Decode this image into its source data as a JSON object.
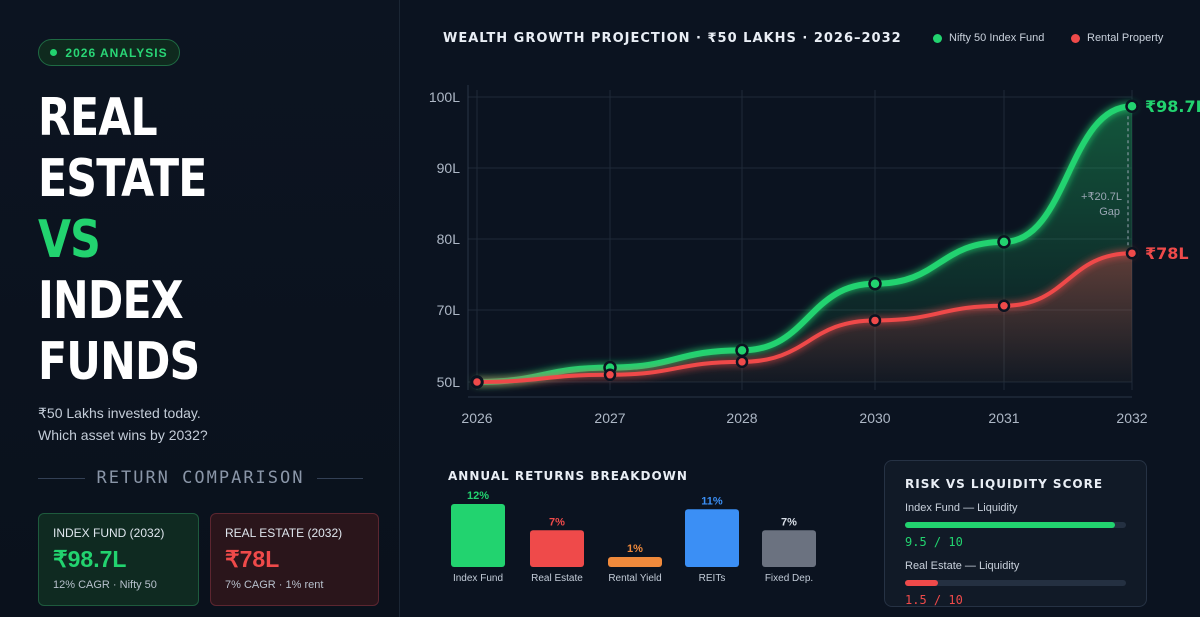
{
  "left": {
    "badge": "2026 ANALYSIS",
    "hero": [
      "REAL",
      "ESTATE",
      "VS",
      "INDEX",
      "FUNDS"
    ],
    "subtitle_1": "₹50 Lakhs invested today.",
    "subtitle_2": "Which asset wins by 2032?",
    "section_title": "RETURN COMPARISON",
    "cards": [
      {
        "label": "INDEX FUND (2032)",
        "value": "₹98.7L",
        "sub": "12% CAGR · Nifty 50"
      },
      {
        "label": "REAL ESTATE (2032)",
        "value": "₹78L",
        "sub": "7% CAGR · 1% rent"
      }
    ]
  },
  "colors": {
    "green": "#22d36f",
    "red": "#ef4a4a",
    "orange": "#f08a3c",
    "blue": "#3b8ff5",
    "gray": "#6b7280"
  },
  "chart_data": [
    {
      "type": "line",
      "title": "WEALTH GROWTH PROJECTION · ₹50 LAKHS · 2026–2032",
      "x": [
        "2026",
        "2027",
        "2028",
        "2030",
        "2031",
        "2032"
      ],
      "y_ticks": [
        "50L",
        "70L",
        "80L",
        "90L",
        "100L"
      ],
      "series": [
        {
          "name": "Nifty 50 Index Fund",
          "values": [
            50,
            54,
            58.8,
            73.7,
            79.6,
            98.7
          ],
          "end_label": "₹98.7L",
          "color": "#22d36f"
        },
        {
          "name": "Rental Property",
          "values": [
            50,
            52,
            55.6,
            67.1,
            70.6,
            78
          ],
          "end_label": "₹78L",
          "color": "#ef4a4a"
        }
      ],
      "annotation": {
        "line1": "+₹20.7L",
        "line2": "Gap"
      },
      "legend": "top-right",
      "grid": true
    },
    {
      "type": "bar",
      "title": "ANNUAL RETURNS BREAKDOWN",
      "categories": [
        "Index Fund",
        "Real Estate",
        "Rental Yield",
        "REITs",
        "Fixed Dep."
      ],
      "values": [
        12,
        7,
        1,
        11,
        7
      ],
      "labels": [
        "12%",
        "7%",
        "1%",
        "11%",
        "7%"
      ],
      "colors": [
        "#22d36f",
        "#ef4a4a",
        "#f08a3c",
        "#3b8ff5",
        "#6b7280"
      ]
    }
  ],
  "risk": {
    "title": "RISK VS LIQUIDITY SCORE",
    "rows": [
      {
        "label": "Index Fund — Liquidity",
        "score": 9.5,
        "score_text": "9.5 / 10",
        "color": "#22d36f"
      },
      {
        "label": "Real Estate — Liquidity",
        "score": 1.5,
        "score_text": "1.5 / 10",
        "color": "#ef4a4a"
      }
    ]
  }
}
